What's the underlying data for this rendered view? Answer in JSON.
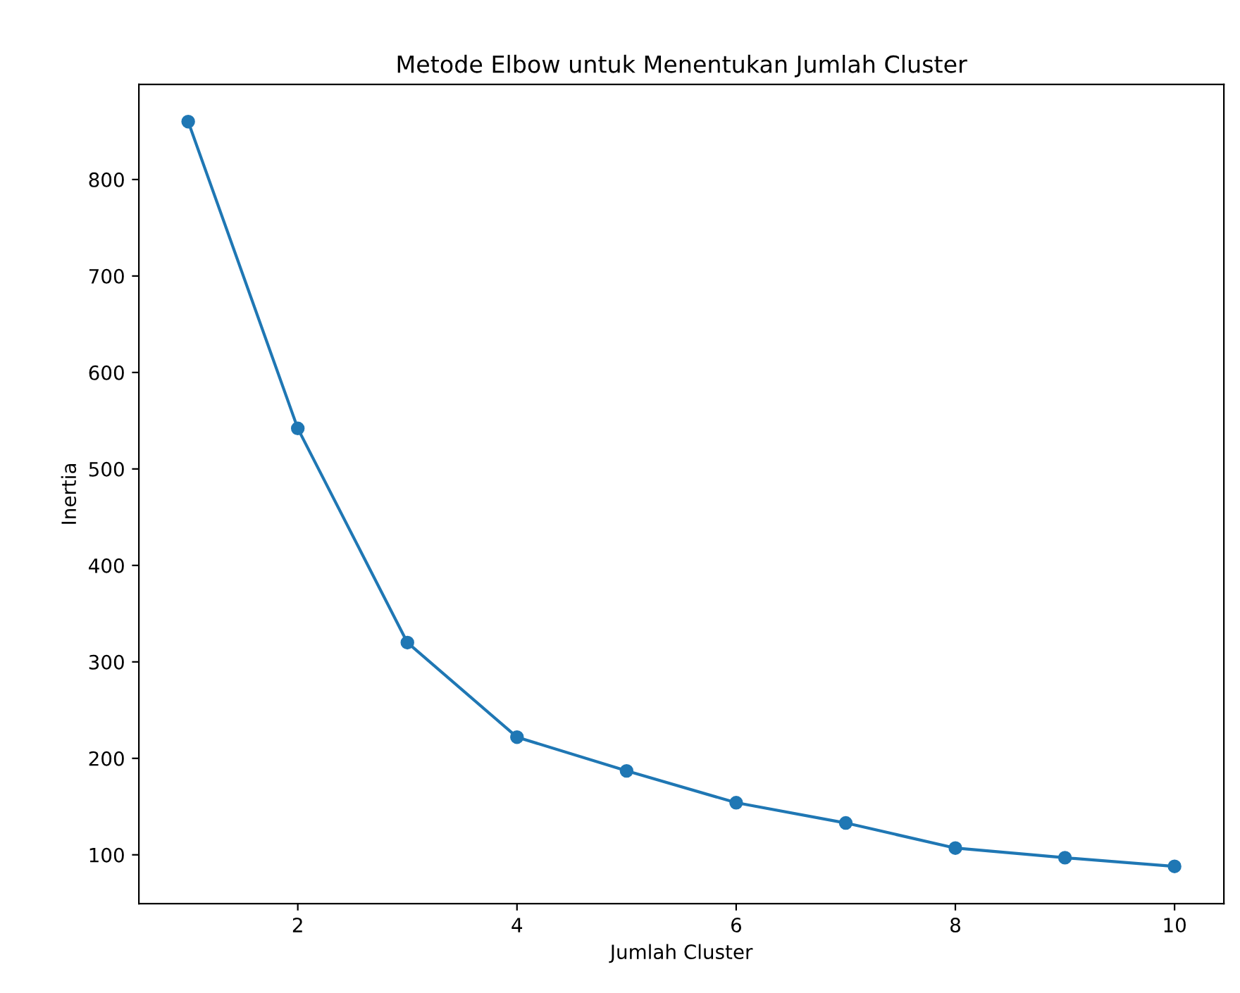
{
  "chart_data": {
    "type": "line",
    "title": "Metode Elbow untuk Menentukan Jumlah Cluster",
    "xlabel": "Jumlah Cluster",
    "ylabel": "Inertia",
    "x": [
      1,
      2,
      3,
      4,
      5,
      6,
      7,
      8,
      9,
      10
    ],
    "series": [
      {
        "color": "#1f77b4",
        "values": [
          860,
          542,
          320,
          222,
          187,
          154,
          133,
          107,
          97,
          88
        ]
      }
    ],
    "marker": "circle",
    "line_style": "solid",
    "grid": false,
    "legend": false,
    "xlim": [
      0.55,
      10.45
    ],
    "xticks": [
      2,
      4,
      6,
      8,
      10
    ],
    "ylim": [
      49.4,
      898.6
    ],
    "yticks": [
      100,
      200,
      300,
      400,
      500,
      600,
      700,
      800
    ]
  }
}
